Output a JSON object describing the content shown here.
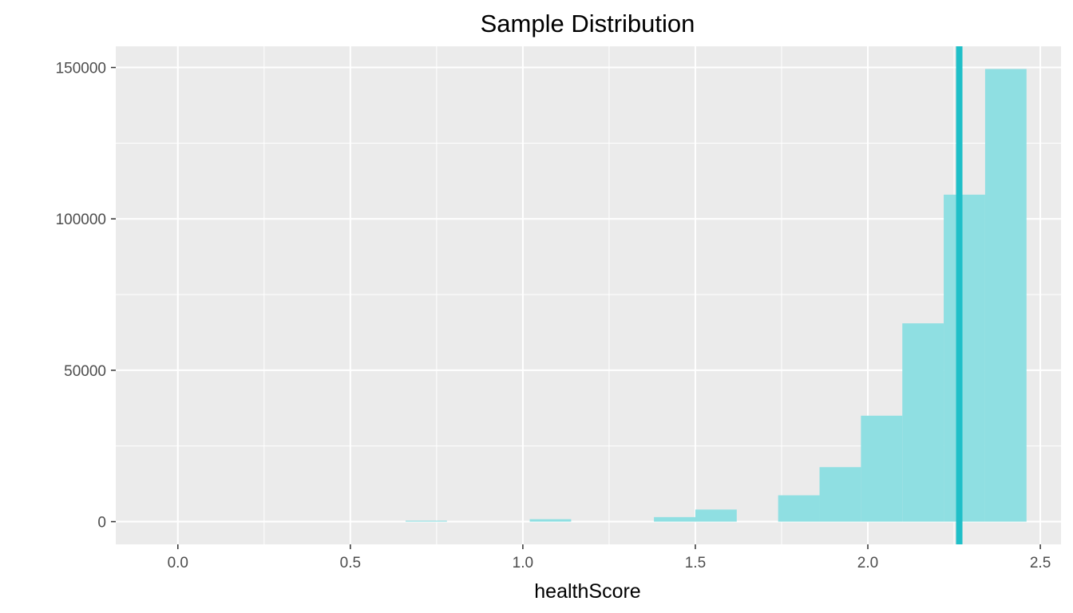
{
  "chart_data": {
    "type": "histogram",
    "title": "Sample Distribution",
    "xlabel": "healthScore",
    "ylabel": "",
    "xlim": [
      -0.18,
      2.56
    ],
    "ylim": [
      -7500,
      157000
    ],
    "x_ticks": [
      {
        "value": 0.0,
        "label": "0.0"
      },
      {
        "value": 0.5,
        "label": "0.5"
      },
      {
        "value": 1.0,
        "label": "1.0"
      },
      {
        "value": 1.5,
        "label": "1.5"
      },
      {
        "value": 2.0,
        "label": "2.0"
      },
      {
        "value": 2.5,
        "label": "2.5"
      }
    ],
    "y_ticks": [
      {
        "value": 0,
        "label": "0"
      },
      {
        "value": 50000,
        "label": "50000"
      },
      {
        "value": 100000,
        "label": "100000"
      },
      {
        "value": 150000,
        "label": "150000"
      }
    ],
    "bins": [
      {
        "x0": 0.66,
        "x1": 0.78,
        "count": 300
      },
      {
        "x0": 1.02,
        "x1": 1.14,
        "count": 800
      },
      {
        "x0": 1.38,
        "x1": 1.5,
        "count": 1500
      },
      {
        "x0": 1.5,
        "x1": 1.62,
        "count": 4000
      },
      {
        "x0": 1.74,
        "x1": 1.86,
        "count": 8700
      },
      {
        "x0": 1.86,
        "x1": 1.98,
        "count": 18000
      },
      {
        "x0": 1.98,
        "x1": 2.1,
        "count": 35000
      },
      {
        "x0": 2.1,
        "x1": 2.22,
        "count": 65500
      },
      {
        "x0": 2.22,
        "x1": 2.34,
        "count": 108000
      },
      {
        "x0": 2.34,
        "x1": 2.46,
        "count": 149500
      }
    ],
    "vline": {
      "x": 2.265,
      "color": "#1fbfc8"
    },
    "bar_color": "#8fdfe2",
    "panel_background": "#ebebeb",
    "grid": true
  }
}
